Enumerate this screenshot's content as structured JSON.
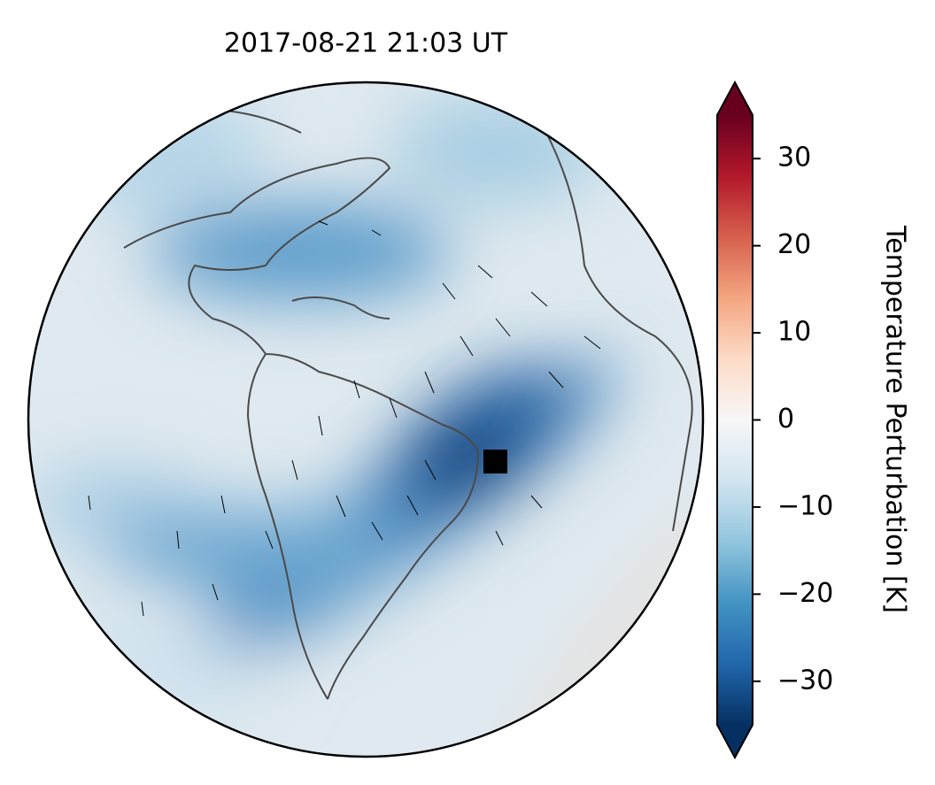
{
  "chart_data": {
    "type": "map",
    "title": "2017-08-21  21:03 UT",
    "colorbar": {
      "label": "Temperature Perturbation [K]",
      "colormap": "RdBu_r",
      "extend": "both",
      "lim": [
        -35,
        35
      ],
      "ticks": [
        {
          "value": -30,
          "label": "−30"
        },
        {
          "value": -20,
          "label": "−20"
        },
        {
          "value": -10,
          "label": "−10"
        },
        0,
        10,
        20,
        30
      ]
    }
  }
}
